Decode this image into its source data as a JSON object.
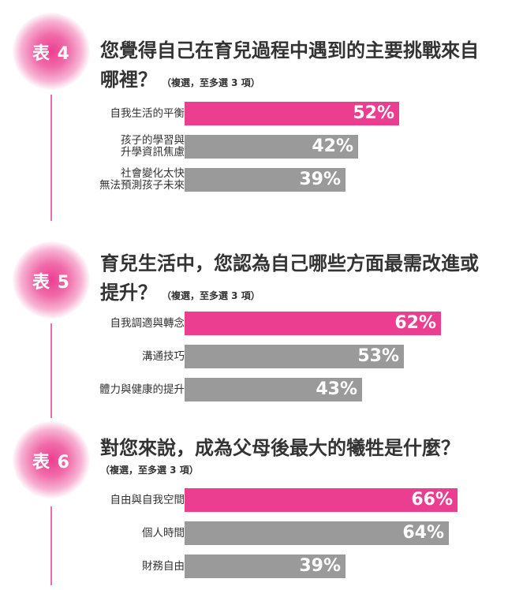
{
  "colors": {
    "accent": "#ec3e91",
    "bar_gray": "#9a9a9a"
  },
  "chart_data": [
    {
      "type": "bar",
      "orientation": "horizontal",
      "badge": "表 4",
      "title": "您覺得自己在育兒過程中遇到的主要挑戰來自哪裡？",
      "note": "（複選，至多選 3 項）",
      "categories": [
        [
          "自我生活的平衡"
        ],
        [
          "孩子的學習與",
          "升學資訊焦慮"
        ],
        [
          "社會變化太快",
          "無法預測孩子未來"
        ]
      ],
      "values": [
        52,
        42,
        39
      ],
      "labels": [
        "52%",
        "42%",
        "39%"
      ],
      "unit": "%",
      "highlight_index": 0
    },
    {
      "type": "bar",
      "orientation": "horizontal",
      "badge": "表 5",
      "title": "育兒生活中，您認為自己哪些方面最需改進或提升？",
      "note": "（複選，至多選 3 項）",
      "categories": [
        [
          "自我調適與轉念"
        ],
        [
          "溝通技巧"
        ],
        [
          "體力與健康的提升"
        ]
      ],
      "values": [
        62,
        53,
        43
      ],
      "labels": [
        "62%",
        "53%",
        "43%"
      ],
      "unit": "%",
      "highlight_index": 0
    },
    {
      "type": "bar",
      "orientation": "horizontal",
      "badge": "表 6",
      "title": "對您來說，成為父母後最大的犧牲是什麼？",
      "note": "（複選，至多選 3 項）",
      "categories": [
        [
          "自由與自我空間"
        ],
        [
          "個人時間"
        ],
        [
          "財務自由"
        ]
      ],
      "values": [
        66,
        64,
        39
      ],
      "labels": [
        "66%",
        "64%",
        "39%"
      ],
      "unit": "%",
      "highlight_index": 0
    }
  ]
}
